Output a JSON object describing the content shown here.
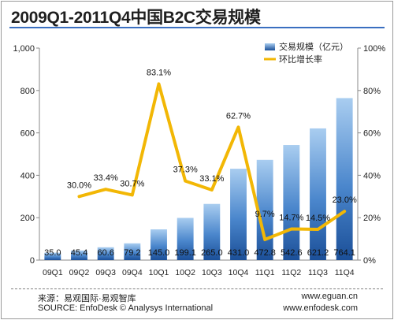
{
  "title": "2009Q1-2011Q4中国B2C交易规模",
  "chart_data": {
    "type": "bar",
    "categories": [
      "09Q1",
      "09Q2",
      "09Q3",
      "09Q4",
      "10Q1",
      "10Q2",
      "10Q3",
      "10Q4",
      "11Q1",
      "11Q2",
      "11Q3",
      "11Q4"
    ],
    "series": [
      {
        "name": "交易规模（亿元）",
        "kind": "bar",
        "axis": "left",
        "values": [
          35.0,
          45.4,
          60.6,
          79.2,
          145.0,
          199.1,
          265.0,
          431.0,
          472.8,
          542.6,
          621.2,
          764.1
        ],
        "labels": [
          "35.0",
          "45.4",
          "60.6",
          "79.2",
          "145.0",
          "199.1",
          "265.0",
          "431.0",
          "472.8",
          "542.6",
          "621.2",
          "764.1"
        ]
      },
      {
        "name": "环比增长率",
        "kind": "line",
        "axis": "right",
        "values": [
          null,
          30.0,
          33.4,
          30.7,
          83.1,
          37.3,
          33.1,
          62.7,
          9.7,
          14.7,
          14.5,
          23.0
        ],
        "labels": [
          "",
          "30.0%",
          "33.4%",
          "30.7%",
          "83.1%",
          "37.3%",
          "33.1%",
          "62.7%",
          "9.7%",
          "14.7%",
          "14.5%",
          "23.0%"
        ]
      }
    ],
    "y_left": {
      "min": 0,
      "max": 1000,
      "ticks": [
        0,
        200,
        400,
        600,
        800,
        1000
      ],
      "tick_labels": [
        "0",
        "200",
        "400",
        "600",
        "800",
        "1,000"
      ]
    },
    "y_right": {
      "min": 0,
      "max": 100,
      "ticks": [
        0,
        20,
        40,
        60,
        80,
        100
      ],
      "tick_labels": [
        "0%",
        "20%",
        "40%",
        "60%",
        "80%",
        "100%"
      ]
    },
    "grid": false,
    "legend_position": "top-right",
    "colors": {
      "bar_light": "#7fb3e6",
      "bar_dark": "#1f5fae",
      "line": "#f2b705",
      "axis": "#888888"
    }
  },
  "footer": {
    "source_cn": "来源：易观国际·易观智库",
    "source_en": "SOURCE: EnfoDesk © Analysys International",
    "url1": "www.eguan.cn",
    "url2": "www.enfodesk.com"
  }
}
